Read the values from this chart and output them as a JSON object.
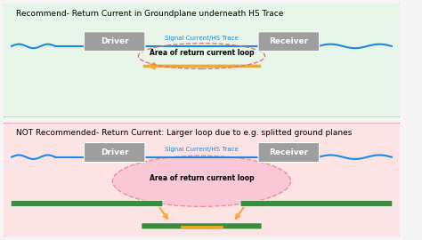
{
  "top_title": "Recommend- Return Current in Groundplane underneath HS Trace",
  "bottom_title": "NOT Recommended- Return Current: Larger loop due to e.g. splitted ground planes",
  "top_bg": "#e8f5e9",
  "bottom_bg": "#fce4e4",
  "top_border": "#4caf50",
  "bottom_border": "#d32f2f",
  "driver_label": "Driver",
  "receiver_label": "Receiver",
  "signal_label": "Signal Current/HS Trace",
  "return_label": "Area of return current loop",
  "signal_color": "#1e88e5",
  "return_arrow_color": "#f9a825",
  "loop_dashed_color": "#e57373",
  "ground_color": "#388e3c",
  "chip_color": "#9e9e9e",
  "title_fontsize": 6.5,
  "label_fontsize": 5.5,
  "signal_fontsize": 5.0
}
